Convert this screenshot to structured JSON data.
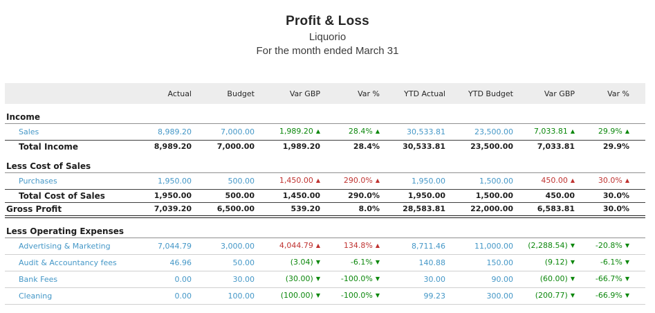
{
  "report": {
    "title": "Profit & Loss",
    "company": "Liquorio",
    "period": "For the month ended March 31"
  },
  "colors": {
    "link": "#4497c7",
    "favourable_green": "#0b870b",
    "unfavourable_red": "#bf3230",
    "header_band_bg": "#ededed",
    "rule_dark": "#3d3d3d",
    "rule_mid": "#8f8f8f",
    "rule_light": "#cfcfcf"
  },
  "table": {
    "columns": [
      "Actual",
      "Budget",
      "Var GBP",
      "Var %",
      "YTD Actual",
      "YTD Budget",
      "Var GBP",
      "Var %"
    ],
    "rows": [
      {
        "type": "section",
        "label": "Income"
      },
      {
        "type": "detail",
        "label": "Sales",
        "cells": [
          {
            "text": "8,989.20",
            "style": "link"
          },
          {
            "text": "7,000.00",
            "style": "link"
          },
          {
            "text": "1,989.20",
            "style": "good",
            "arrow": "up"
          },
          {
            "text": "28.4%",
            "style": "good",
            "arrow": "up"
          },
          {
            "text": "30,533.81",
            "style": "link"
          },
          {
            "text": "23,500.00",
            "style": "link"
          },
          {
            "text": "7,033.81",
            "style": "good",
            "arrow": "up"
          },
          {
            "text": "29.9%",
            "style": "good",
            "arrow": "up"
          }
        ]
      },
      {
        "type": "total",
        "label": "Total Income",
        "cells": [
          {
            "text": "8,989.20"
          },
          {
            "text": "7,000.00"
          },
          {
            "text": "1,989.20"
          },
          {
            "text": "28.4%"
          },
          {
            "text": "30,533.81"
          },
          {
            "text": "23,500.00"
          },
          {
            "text": "7,033.81"
          },
          {
            "text": "29.9%"
          }
        ]
      },
      {
        "type": "section",
        "label": "Less Cost of Sales"
      },
      {
        "type": "detail",
        "label": "Purchases",
        "cells": [
          {
            "text": "1,950.00",
            "style": "link"
          },
          {
            "text": "500.00",
            "style": "link"
          },
          {
            "text": "1,450.00",
            "style": "bad",
            "arrow": "up"
          },
          {
            "text": "290.0%",
            "style": "bad",
            "arrow": "up"
          },
          {
            "text": "1,950.00",
            "style": "link"
          },
          {
            "text": "1,500.00",
            "style": "link"
          },
          {
            "text": "450.00",
            "style": "bad",
            "arrow": "up"
          },
          {
            "text": "30.0%",
            "style": "bad",
            "arrow": "up"
          }
        ]
      },
      {
        "type": "total",
        "label": "Total Cost of Sales",
        "cells": [
          {
            "text": "1,950.00"
          },
          {
            "text": "500.00"
          },
          {
            "text": "1,450.00"
          },
          {
            "text": "290.0%"
          },
          {
            "text": "1,950.00"
          },
          {
            "text": "1,500.00"
          },
          {
            "text": "450.00"
          },
          {
            "text": "30.0%"
          }
        ]
      },
      {
        "type": "gross",
        "label": "Gross Profit",
        "cells": [
          {
            "text": "7,039.20"
          },
          {
            "text": "6,500.00"
          },
          {
            "text": "539.20"
          },
          {
            "text": "8.0%"
          },
          {
            "text": "28,583.81"
          },
          {
            "text": "22,000.00"
          },
          {
            "text": "6,583.81"
          },
          {
            "text": "30.0%"
          }
        ]
      },
      {
        "type": "section",
        "label": "Less Operating Expenses"
      },
      {
        "type": "detail",
        "label": "Advertising & Marketing",
        "cells": [
          {
            "text": "7,044.79",
            "style": "link"
          },
          {
            "text": "3,000.00",
            "style": "link"
          },
          {
            "text": "4,044.79",
            "style": "bad",
            "arrow": "up"
          },
          {
            "text": "134.8%",
            "style": "bad",
            "arrow": "up"
          },
          {
            "text": "8,711.46",
            "style": "link"
          },
          {
            "text": "11,000.00",
            "style": "link"
          },
          {
            "text": "(2,288.54)",
            "style": "good",
            "arrow": "down"
          },
          {
            "text": "-20.8%",
            "style": "good",
            "arrow": "down"
          }
        ]
      },
      {
        "type": "detail",
        "label": "Audit & Accountancy fees",
        "cells": [
          {
            "text": "46.96",
            "style": "link"
          },
          {
            "text": "50.00",
            "style": "link"
          },
          {
            "text": "(3.04)",
            "style": "good",
            "arrow": "down"
          },
          {
            "text": "-6.1%",
            "style": "good",
            "arrow": "down"
          },
          {
            "text": "140.88",
            "style": "link"
          },
          {
            "text": "150.00",
            "style": "link"
          },
          {
            "text": "(9.12)",
            "style": "good",
            "arrow": "down"
          },
          {
            "text": "-6.1%",
            "style": "good",
            "arrow": "down"
          }
        ]
      },
      {
        "type": "detail",
        "label": "Bank Fees",
        "cells": [
          {
            "text": "0.00",
            "style": "link"
          },
          {
            "text": "30.00",
            "style": "link"
          },
          {
            "text": "(30.00)",
            "style": "good",
            "arrow": "down"
          },
          {
            "text": "-100.0%",
            "style": "good",
            "arrow": "down"
          },
          {
            "text": "30.00",
            "style": "link"
          },
          {
            "text": "90.00",
            "style": "link"
          },
          {
            "text": "(60.00)",
            "style": "good",
            "arrow": "down"
          },
          {
            "text": "-66.7%",
            "style": "good",
            "arrow": "down"
          }
        ]
      },
      {
        "type": "detail",
        "label": "Cleaning",
        "cells": [
          {
            "text": "0.00",
            "style": "link"
          },
          {
            "text": "100.00",
            "style": "link"
          },
          {
            "text": "(100.00)",
            "style": "good",
            "arrow": "down"
          },
          {
            "text": "-100.0%",
            "style": "good",
            "arrow": "down"
          },
          {
            "text": "99.23",
            "style": "link"
          },
          {
            "text": "300.00",
            "style": "link"
          },
          {
            "text": "(200.77)",
            "style": "good",
            "arrow": "down"
          },
          {
            "text": "-66.9%",
            "style": "good",
            "arrow": "down"
          }
        ]
      }
    ]
  }
}
